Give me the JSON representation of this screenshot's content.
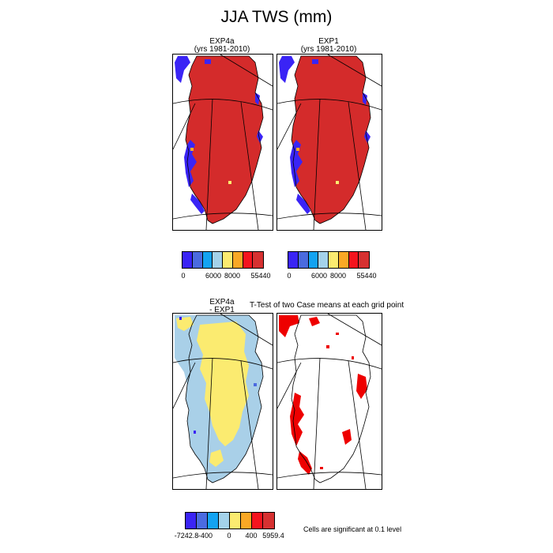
{
  "figure": {
    "title": "JJA TWS (mm)",
    "panels": [
      {
        "name": "EXP4a",
        "subtitle": "(yrs 1981-2010)"
      },
      {
        "name": "EXP1",
        "subtitle": "(yrs 1981-2010)"
      },
      {
        "name": "EXP4a",
        "subtitle": "- EXP1"
      },
      {
        "name": "",
        "subtitle": ""
      }
    ],
    "ttest_title": "T-Test of two Case means at each grid point",
    "significance_note": "Cells are significant at 0.1 level"
  },
  "legends": {
    "tws": {
      "colors": [
        "#3a24f5",
        "#4b6be0",
        "#13a3f2",
        "#a4d2ea",
        "#fbeb70",
        "#f9a825",
        "#f5141e",
        "#d63131"
      ],
      "tick_labels": [
        "0",
        "6000",
        "8000",
        "55440"
      ]
    },
    "diff": {
      "colors": [
        "#3a24f5",
        "#4b6be0",
        "#13a3f2",
        "#a4d2ea",
        "#fbeb70",
        "#f9a825",
        "#f5141e",
        "#d63131"
      ],
      "tick_labels": [
        "-7242.8",
        "-400",
        "0",
        "400",
        "5959.4"
      ]
    }
  },
  "colors": {
    "ice": "#d42b2b",
    "low": "#3a24f5",
    "diff_fill": "#a9d0e8",
    "diff_hot": "#fbeb70",
    "sig": "#ee0000"
  }
}
